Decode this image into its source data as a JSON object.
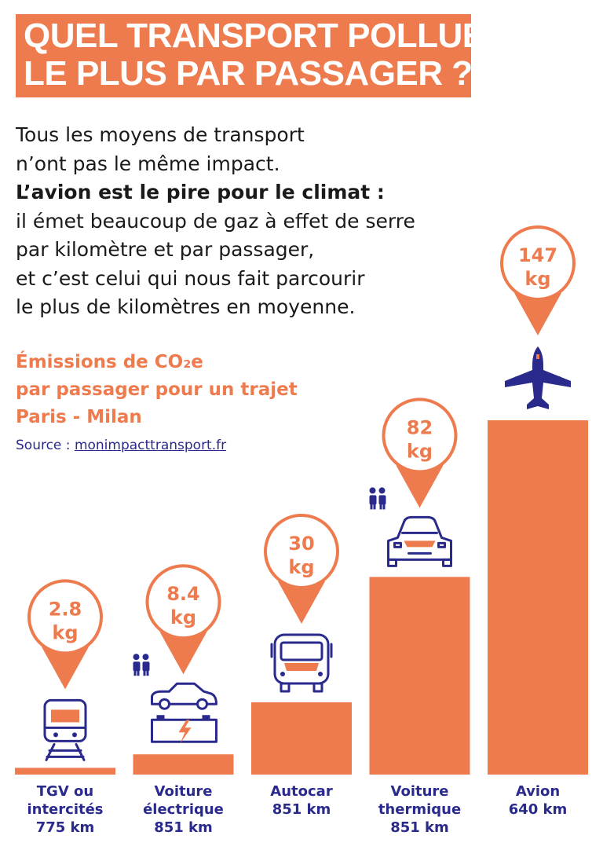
{
  "title": {
    "line1": "QUEL TRANSPORT POLLUE",
    "line2": "LE PLUS PAR PASSAGER ?"
  },
  "intro": [
    {
      "text": "Tous les moyens de transport",
      "bold": false
    },
    {
      "text": "n’ont pas le même impact.",
      "bold": false
    },
    {
      "text": "L’avion est le pire pour le climat :",
      "bold": true
    },
    {
      "text": "il émet beaucoup de gaz à effet de serre",
      "bold": false
    },
    {
      "text": "par kilomètre et par passager,",
      "bold": false
    },
    {
      "text": "et c’est celui qui nous fait parcourir",
      "bold": false
    },
    {
      "text": "le plus de kilomètres en moyenne.",
      "bold": false
    }
  ],
  "subtitle": {
    "line1": "Émissions de CO₂e",
    "line2": "par passager pour un trajet",
    "line3": "Paris - Milan"
  },
  "source": {
    "label": "Source : ",
    "link": "monimpacttransport.fr"
  },
  "colors": {
    "accent": "#ee7b4e",
    "navy": "#2a2a8c",
    "white": "#ffffff"
  },
  "chart_data": {
    "type": "bar",
    "unit": "kg",
    "categories": [
      {
        "lines": [
          "TGV  ou",
          "intercités",
          "775 km"
        ],
        "value": 2.8,
        "label": "2.8",
        "icon": "train-icon",
        "passengers": false
      },
      {
        "lines": [
          "Voiture",
          "électrique",
          "851 km"
        ],
        "value": 8.4,
        "label": "8.4",
        "icon": "electric-car-icon",
        "passengers": true
      },
      {
        "lines": [
          "Autocar",
          "851 km"
        ],
        "value": 30,
        "label": "30",
        "icon": "bus-icon",
        "passengers": false
      },
      {
        "lines": [
          "Voiture",
          "thermique",
          "851 km"
        ],
        "value": 82,
        "label": "82",
        "icon": "car-icon",
        "passengers": true
      },
      {
        "lines": [
          "Avion",
          "640 km"
        ],
        "value": 147,
        "label": "147",
        "icon": "airplane-icon",
        "passengers": false
      }
    ]
  }
}
